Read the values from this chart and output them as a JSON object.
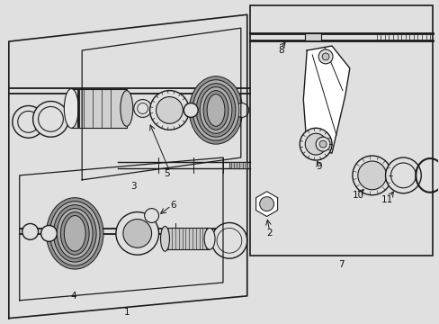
{
  "bg_color": "#e0e0e0",
  "line_color": "#1a1a1a",
  "label_color": "#111111",
  "fig_width": 4.89,
  "fig_height": 3.6
}
